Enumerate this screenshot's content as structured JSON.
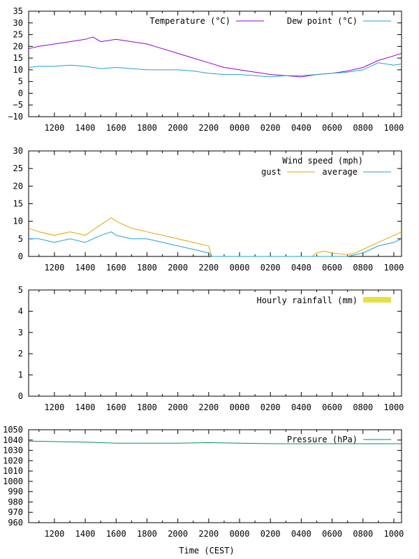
{
  "chart_data": [
    {
      "type": "line",
      "title": "",
      "xlabel": "",
      "ylabel": "",
      "x_tick_labels": [
        "1200",
        "1400",
        "1600",
        "1800",
        "2000",
        "2200",
        "0000",
        "0200",
        "0400",
        "0600",
        "0800",
        "1000"
      ],
      "ylim": [
        -10,
        35
      ],
      "y_ticks": [
        -10,
        -5,
        0,
        5,
        10,
        15,
        20,
        25,
        30,
        35
      ],
      "legend_position": "top-right",
      "x": [
        10.33,
        11,
        12,
        13,
        14,
        14.5,
        15,
        16,
        17,
        18,
        19,
        20,
        21,
        22,
        23,
        24,
        25,
        26,
        27,
        28,
        29,
        30,
        31,
        32,
        33,
        34,
        34.5
      ],
      "series": [
        {
          "name": "Temperature (°C)",
          "color": "#9400d3",
          "values": [
            19,
            20,
            21,
            22,
            23,
            24,
            22,
            23,
            22,
            21,
            19,
            17,
            15,
            13,
            11,
            10,
            9,
            8,
            7.5,
            7,
            8,
            8.5,
            9.5,
            11,
            14,
            16,
            17
          ]
        },
        {
          "name": "Dew point (°C)",
          "color": "#1fa3d1",
          "values": [
            11,
            11.5,
            11.5,
            12,
            11.5,
            11,
            10.5,
            11,
            10.5,
            10,
            10,
            10,
            9.5,
            8.5,
            8,
            8,
            7.5,
            7,
            7.5,
            7.5,
            8,
            8.5,
            9,
            10,
            13,
            12,
            12.5
          ]
        }
      ]
    },
    {
      "type": "line",
      "title": "Wind speed (mph)",
      "xlabel": "",
      "ylabel": "",
      "x_tick_labels": [
        "1200",
        "1400",
        "1600",
        "1800",
        "2000",
        "2200",
        "0000",
        "0200",
        "0400",
        "0600",
        "0800",
        "1000"
      ],
      "ylim": [
        0,
        30
      ],
      "y_ticks": [
        0,
        5,
        10,
        15,
        20,
        25,
        30
      ],
      "legend_position": "top-right",
      "x": [
        10.33,
        11,
        12,
        13,
        14,
        15,
        15.7,
        16,
        17,
        18,
        19,
        20,
        21,
        22,
        22.2,
        28.7,
        29,
        29.5,
        30,
        31,
        31.5,
        32,
        33,
        34,
        34.5
      ],
      "series": [
        {
          "name": "gust",
          "color": "#e8a000",
          "values": [
            8,
            7,
            6,
            7,
            6,
            9,
            11,
            10,
            8,
            7,
            6,
            5,
            4,
            3,
            0,
            0,
            1,
            1.5,
            1,
            0.5,
            1,
            2,
            4,
            6,
            7
          ]
        },
        {
          "name": "average",
          "color": "#1fa3d1",
          "values": [
            5,
            5,
            4,
            5,
            4,
            6,
            7,
            6,
            5,
            5,
            4,
            3,
            2,
            1,
            0,
            0,
            0,
            0,
            0,
            0,
            0.5,
            1,
            3,
            4,
            5
          ]
        }
      ]
    },
    {
      "type": "bar",
      "title": "",
      "xlabel": "",
      "ylabel": "",
      "x_tick_labels": [
        "1200",
        "1400",
        "1600",
        "1800",
        "2000",
        "2200",
        "0000",
        "0200",
        "0400",
        "0600",
        "0800",
        "1000"
      ],
      "ylim": [
        0,
        5
      ],
      "y_ticks": [
        0,
        1,
        2,
        3,
        4,
        5
      ],
      "legend_position": "top-right",
      "series": [
        {
          "name": "Hourly rainfall (mm)",
          "color": "#e8e040",
          "values": []
        }
      ]
    },
    {
      "type": "line",
      "title": "",
      "xlabel": "Time (CEST)",
      "ylabel": "",
      "x_tick_labels": [
        "1200",
        "1400",
        "1600",
        "1800",
        "2000",
        "2200",
        "0000",
        "0200",
        "0400",
        "0600",
        "0800",
        "1000"
      ],
      "ylim": [
        960,
        1050
      ],
      "y_ticks": [
        960,
        970,
        980,
        990,
        1000,
        1010,
        1020,
        1030,
        1040,
        1050
      ],
      "legend_position": "top-right",
      "x": [
        10.33,
        12,
        14,
        16,
        18,
        20,
        22,
        24,
        26,
        28,
        30,
        32,
        34,
        34.5
      ],
      "series": [
        {
          "name": "Pressure (hPa)",
          "color": "#008b6b",
          "values": [
            1039,
            1038.5,
            1038,
            1037,
            1037,
            1037,
            1037.5,
            1037,
            1036.5,
            1036.5,
            1036.5,
            1036.5,
            1036.5,
            1036.5
          ]
        }
      ]
    }
  ]
}
